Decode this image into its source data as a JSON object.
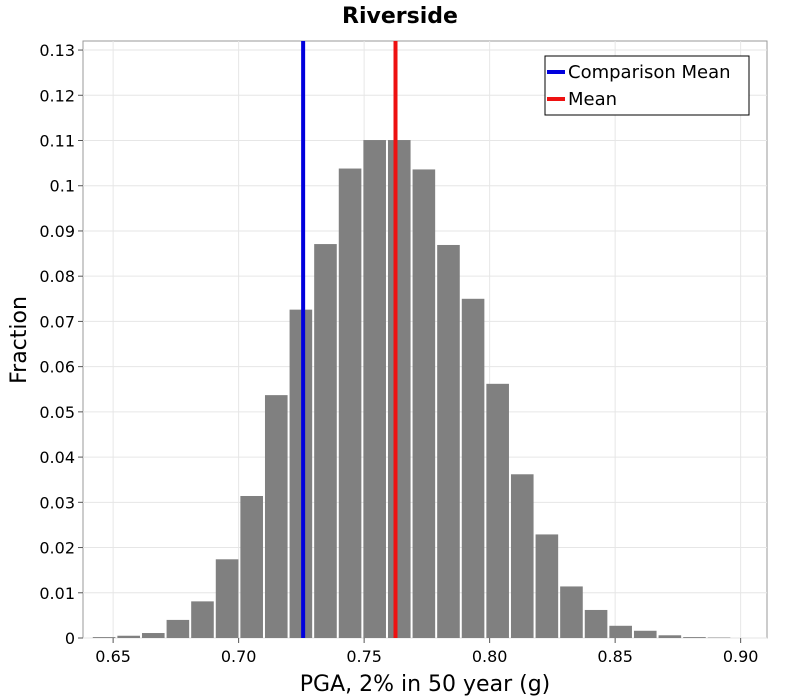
{
  "chart_data": {
    "type": "bar",
    "title": "Riverside",
    "xlabel": "PGA, 2% in 50 year (g)",
    "ylabel": "Fraction",
    "xlim": [
      0.638,
      0.9105
    ],
    "ylim": [
      0,
      0.132
    ],
    "bin_width": 0.0098,
    "bar_color": "#808080",
    "bars": [
      {
        "center": 0.6464,
        "value": 0.0002
      },
      {
        "center": 0.6562,
        "value": 0.0005
      },
      {
        "center": 0.666,
        "value": 0.0011
      },
      {
        "center": 0.6758,
        "value": 0.004
      },
      {
        "center": 0.6856,
        "value": 0.0081
      },
      {
        "center": 0.6954,
        "value": 0.0174
      },
      {
        "center": 0.7052,
        "value": 0.0314
      },
      {
        "center": 0.715,
        "value": 0.0537
      },
      {
        "center": 0.7248,
        "value": 0.0726
      },
      {
        "center": 0.7346,
        "value": 0.0871
      },
      {
        "center": 0.7444,
        "value": 0.1038
      },
      {
        "center": 0.7542,
        "value": 0.1101
      },
      {
        "center": 0.764,
        "value": 0.1101
      },
      {
        "center": 0.7738,
        "value": 0.1036
      },
      {
        "center": 0.7836,
        "value": 0.0869
      },
      {
        "center": 0.7934,
        "value": 0.075
      },
      {
        "center": 0.8032,
        "value": 0.0562
      },
      {
        "center": 0.813,
        "value": 0.0362
      },
      {
        "center": 0.8228,
        "value": 0.0229
      },
      {
        "center": 0.8326,
        "value": 0.0114
      },
      {
        "center": 0.8424,
        "value": 0.0062
      },
      {
        "center": 0.8522,
        "value": 0.0027
      },
      {
        "center": 0.862,
        "value": 0.0016
      },
      {
        "center": 0.8718,
        "value": 0.0006
      },
      {
        "center": 0.8816,
        "value": 0.0002
      },
      {
        "center": 0.8914,
        "value": 0.0001
      }
    ],
    "vlines": [
      {
        "name": "Comparison Mean",
        "x": 0.7257,
        "color": "#0000dd"
      },
      {
        "name": "Mean",
        "x": 0.7625,
        "color": "#ee1111"
      }
    ],
    "x_ticks": [
      {
        "value": 0.65,
        "label": "0.65"
      },
      {
        "value": 0.7,
        "label": "0.70"
      },
      {
        "value": 0.75,
        "label": "0.75"
      },
      {
        "value": 0.8,
        "label": "0.80"
      },
      {
        "value": 0.85,
        "label": "0.85"
      },
      {
        "value": 0.9,
        "label": "0.90"
      }
    ],
    "y_ticks": [
      {
        "value": 0,
        "label": "0"
      },
      {
        "value": 0.01,
        "label": "0.01"
      },
      {
        "value": 0.02,
        "label": "0.02"
      },
      {
        "value": 0.03,
        "label": "0.03"
      },
      {
        "value": 0.04,
        "label": "0.04"
      },
      {
        "value": 0.05,
        "label": "0.05"
      },
      {
        "value": 0.06,
        "label": "0.06"
      },
      {
        "value": 0.07,
        "label": "0.07"
      },
      {
        "value": 0.08,
        "label": "0.08"
      },
      {
        "value": 0.09,
        "label": "0.09"
      },
      {
        "value": 0.1,
        "label": "0.1"
      },
      {
        "value": 0.11,
        "label": "0.11"
      },
      {
        "value": 0.12,
        "label": "0.12"
      },
      {
        "value": 0.13,
        "label": "0.13"
      }
    ],
    "legend": {
      "position": "top-right",
      "entries": [
        {
          "label": "Comparison Mean",
          "color": "#0000dd"
        },
        {
          "label": "Mean",
          "color": "#ee1111"
        }
      ]
    },
    "grid": true
  }
}
